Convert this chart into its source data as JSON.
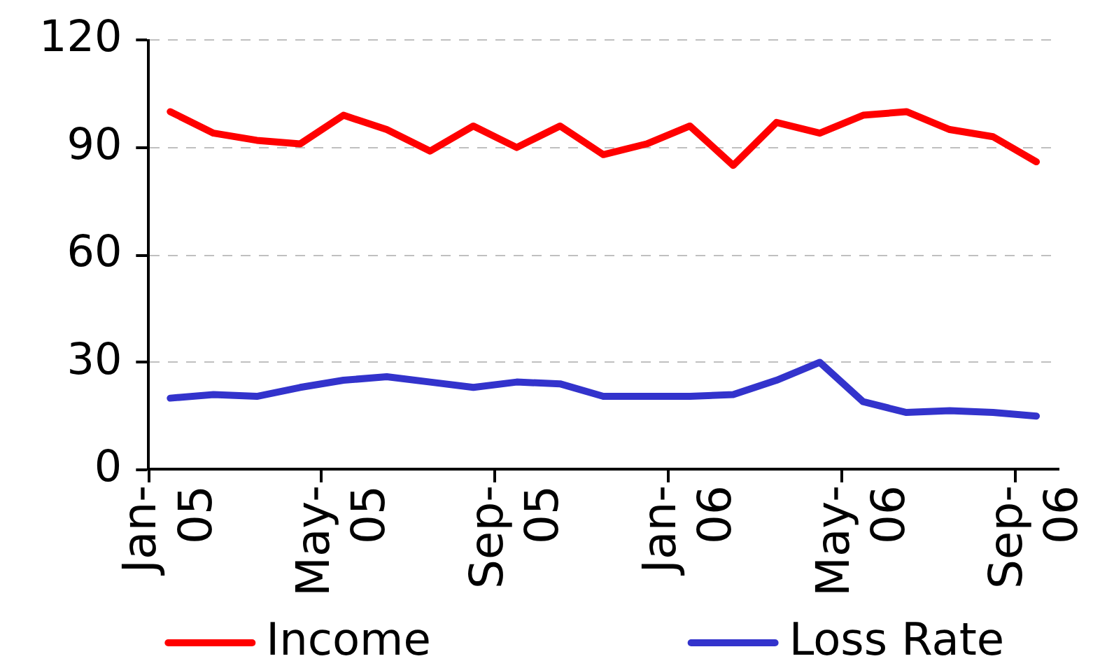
{
  "chart_data": {
    "type": "line",
    "categories": [
      "Jan-05",
      null,
      null,
      null,
      "May-05",
      null,
      null,
      null,
      "Sep-05",
      null,
      null,
      null,
      "Jan-06",
      null,
      null,
      null,
      "May-06",
      null,
      null,
      null,
      "Sep-06"
    ],
    "series": [
      {
        "name": "Income",
        "color": "#ff0000",
        "values": [
          100,
          94,
          92,
          91,
          99,
          95,
          89,
          96,
          90,
          96,
          88,
          91,
          96,
          85,
          97,
          94,
          99,
          100,
          95,
          93,
          86
        ]
      },
      {
        "name": "Loss Rate",
        "color": "#3333cc",
        "values": [
          20,
          21,
          20.5,
          23,
          25,
          26,
          24.5,
          23,
          24.5,
          24,
          20.5,
          20.5,
          20.5,
          21,
          25,
          30,
          19,
          16,
          16.5,
          16,
          15
        ]
      }
    ],
    "ylim": [
      0,
      120
    ],
    "yticks": [
      0,
      30,
      60,
      90,
      120
    ],
    "grid": "y",
    "legend": "bottom",
    "marker": "none",
    "line_style": "solid"
  }
}
